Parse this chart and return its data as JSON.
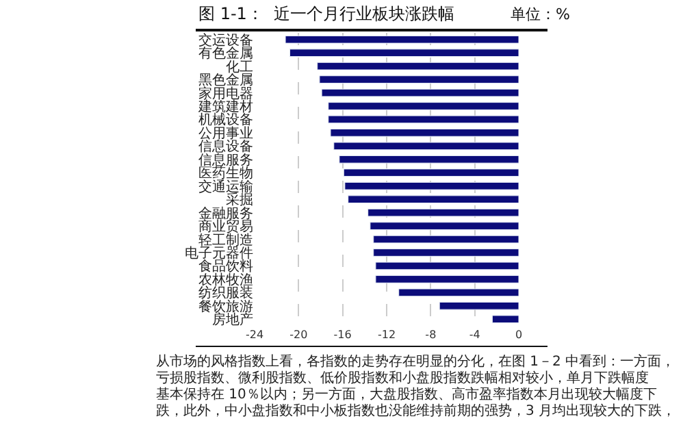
{
  "chart_data": {
    "type": "bar",
    "orientation": "horizontal",
    "title": "图 1-1：  近一个月行业板块涨跌幅",
    "categories": [
      "交运设备",
      "有色金属",
      "化工",
      "黑色金属",
      "家用电器",
      "建筑建材",
      "机械设备",
      "公用事业",
      "信息设备",
      "信息服务",
      "医药生物",
      "交通运输",
      "采掘",
      "金融服务",
      "商业贸易",
      "轻工制造",
      "电子元器件",
      "食品饮料",
      "农林牧渔",
      "纺织服装",
      "餐饮旅游",
      "房地产"
    ],
    "values": [
      -21.2,
      -20.8,
      -18.3,
      -18.1,
      -17.9,
      -17.3,
      -17.3,
      -17.1,
      -16.8,
      -16.3,
      -15.9,
      -15.8,
      -15.5,
      -13.7,
      -13.5,
      -13.2,
      -13.2,
      -13.0,
      -13.0,
      -10.9,
      -7.2,
      -2.4
    ],
    "color": "#0c0c7a",
    "xlim": [
      -24,
      0
    ],
    "xticks": [
      -24,
      -20,
      -16,
      -12,
      -8,
      -4,
      0
    ],
    "grid": "x",
    "legend": false,
    "annotations": [
      "单位：%",
      "从市场的风格指数上看，各指数的走势存在明显的分化，在图 1－2 中看到：一方面，",
      "亏损股指数、微利股指数、低价股指数和小盘股指数跌幅相对较小，单月下跌幅度",
      "基本保持在 10％以内；另一方面，大盘股指数、高市盈率指数本月出现较大幅度下",
      "跌，此外，中小盘指数和中小板指数也没能维持前期的强势，3 月均出现较大的下跌，"
    ]
  }
}
